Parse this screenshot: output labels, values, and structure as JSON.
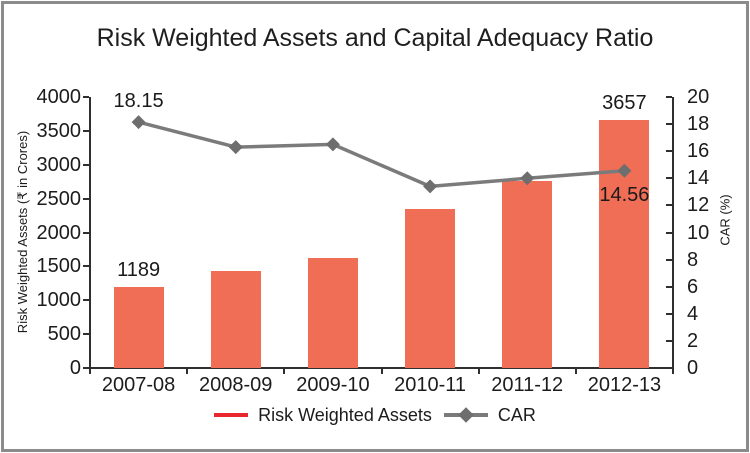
{
  "chart_data": {
    "type": "combo-bar-line",
    "title": "Risk Weighted Assets and Capital Adequacy Ratio",
    "categories": [
      "2007-08",
      "2008-09",
      "2009-10",
      "2010-11",
      "2011-12",
      "2012-13"
    ],
    "series": [
      {
        "name": "Risk Weighted Assets",
        "type": "bar",
        "axis": "left",
        "color": "#f06e55",
        "values": [
          1189,
          1430,
          1620,
          2340,
          2765,
          3657
        ]
      },
      {
        "name": "CAR",
        "type": "line",
        "axis": "right",
        "color": "#7b7b7b",
        "marker": "diamond",
        "marker_color": "#6e6e6e",
        "values": [
          18.15,
          16.3,
          16.5,
          13.4,
          14.0,
          14.56
        ]
      }
    ],
    "data_labels": [
      {
        "series": "CAR",
        "category": "2007-08",
        "text": "18.15",
        "position": "above"
      },
      {
        "series": "Risk Weighted Assets",
        "category": "2007-08",
        "text": "1189",
        "position": "above"
      },
      {
        "series": "Risk Weighted Assets",
        "category": "2012-13",
        "text": "3657",
        "position": "above"
      },
      {
        "series": "CAR",
        "category": "2012-13",
        "text": "14.56",
        "position": "below"
      }
    ],
    "axes": {
      "left": {
        "label": "Risk Weighted Assets (₹ in Crores)",
        "min": 0,
        "max": 4000,
        "step": 500
      },
      "right": {
        "label": "CAR (%)",
        "min": 0,
        "max": 20,
        "step": 2
      }
    },
    "legend": {
      "position": "bottom",
      "items": [
        {
          "label": "Risk Weighted Assets",
          "swatch": "red-line",
          "swatch_color": "#e9262b"
        },
        {
          "label": "CAR",
          "swatch": "gray-diamond-line",
          "swatch_color": "#7b7b7b"
        }
      ]
    },
    "grid": false
  },
  "frame": {
    "border_color": "#8b8b8b"
  }
}
